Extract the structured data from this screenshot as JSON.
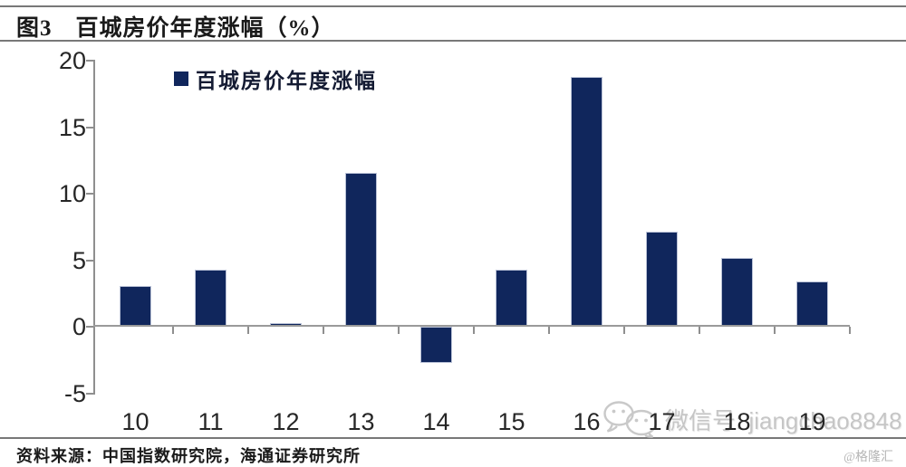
{
  "figure": {
    "title": "图3　百城房价年度涨幅（%）",
    "source": "资料来源：中国指数研究院，海通证券研究所",
    "brand": "@格隆汇",
    "watermark_text": "微信号: jiangchao8848"
  },
  "chart_data": {
    "type": "bar",
    "title": "百城房价年度涨幅（%）",
    "legend": [
      "百城房价年度涨幅"
    ],
    "legend_position": "top-left-inside",
    "categories": [
      "10",
      "11",
      "12",
      "13",
      "14",
      "15",
      "16",
      "17",
      "18",
      "19"
    ],
    "values": [
      3.0,
      4.2,
      0.2,
      11.5,
      -2.7,
      4.2,
      18.7,
      7.1,
      5.1,
      3.3
    ],
    "xlabel": "",
    "ylabel": "",
    "ylim": [
      -5,
      20
    ],
    "yticks": [
      -5,
      0,
      5,
      10,
      15,
      20
    ],
    "grid": false,
    "bar_color": "#10265c",
    "axis_color": "#8f8f8f"
  }
}
